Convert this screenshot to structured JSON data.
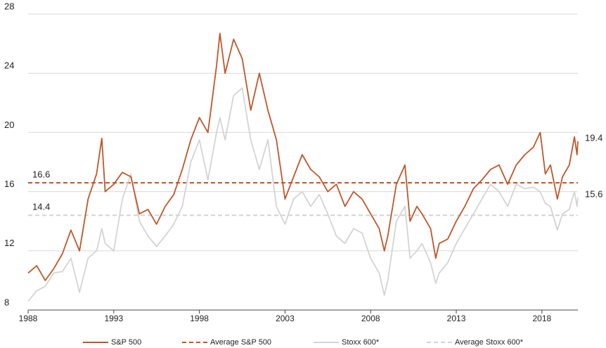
{
  "chart_data": {
    "type": "line",
    "x": [
      1988.0,
      1988.5,
      1989.0,
      1989.5,
      1990.0,
      1990.5,
      1991.0,
      1991.5,
      1992.0,
      1992.3,
      1992.5,
      1993.0,
      1993.5,
      1994.0,
      1994.5,
      1995.0,
      1995.5,
      1996.0,
      1996.5,
      1997.0,
      1997.5,
      1998.0,
      1998.5,
      1999.0,
      1999.2,
      1999.5,
      2000.0,
      2000.5,
      2001.0,
      2001.5,
      2002.0,
      2002.5,
      2003.0,
      2003.5,
      2004.0,
      2004.5,
      2005.0,
      2005.5,
      2006.0,
      2006.5,
      2007.0,
      2007.5,
      2008.0,
      2008.5,
      2008.8,
      2009.0,
      2009.5,
      2010.0,
      2010.3,
      2010.7,
      2011.0,
      2011.5,
      2011.8,
      2012.0,
      2012.5,
      2013.0,
      2013.5,
      2014.0,
      2014.5,
      2015.0,
      2015.5,
      2016.0,
      2016.5,
      2017.0,
      2017.5,
      2017.9,
      2018.2,
      2018.5,
      2018.9,
      2019.2,
      2019.6,
      2019.9,
      2020.05,
      2020.1
    ],
    "series": [
      {
        "name": "S&P 500",
        "color": "#c0562a",
        "values": [
          10.5,
          11.0,
          10.0,
          10.8,
          11.8,
          13.4,
          12.0,
          15.5,
          17.2,
          19.6,
          16.0,
          16.5,
          17.3,
          17.0,
          14.5,
          14.8,
          13.8,
          15.0,
          15.8,
          17.5,
          19.5,
          21.0,
          20.0,
          24.5,
          26.7,
          24.0,
          26.3,
          25.0,
          21.5,
          24.0,
          21.5,
          19.5,
          15.5,
          17.0,
          18.5,
          17.5,
          17.0,
          16.0,
          16.5,
          15.0,
          16.0,
          15.5,
          14.5,
          13.5,
          12.0,
          13.0,
          16.5,
          17.8,
          14.0,
          15.0,
          14.5,
          13.5,
          11.5,
          12.5,
          12.8,
          14.0,
          15.0,
          16.2,
          16.8,
          17.5,
          17.8,
          16.5,
          17.8,
          18.5,
          19.0,
          20.0,
          17.2,
          17.8,
          15.5,
          17.0,
          17.8,
          19.7,
          18.5,
          19.4
        ]
      },
      {
        "name": "Stoxx 600*",
        "color": "#d4d4d4",
        "values": [
          8.6,
          9.3,
          9.6,
          10.5,
          10.6,
          11.5,
          9.2,
          11.5,
          12.0,
          13.5,
          12.5,
          12.0,
          15.5,
          17.2,
          14.0,
          13.0,
          12.3,
          13.0,
          13.8,
          15.0,
          18.0,
          19.5,
          16.8,
          20.0,
          21.0,
          19.5,
          22.5,
          23.0,
          19.5,
          17.5,
          19.5,
          15.0,
          13.8,
          15.5,
          16.0,
          15.0,
          15.8,
          14.5,
          13.0,
          12.5,
          13.5,
          13.2,
          11.5,
          10.5,
          9.0,
          10.0,
          14.0,
          15.0,
          11.5,
          12.0,
          12.5,
          11.2,
          9.8,
          10.5,
          11.2,
          12.5,
          13.5,
          14.5,
          15.5,
          16.5,
          16.0,
          15.0,
          16.5,
          16.2,
          16.3,
          16.0,
          15.2,
          15.0,
          13.4,
          14.5,
          14.8,
          16.0,
          15.0,
          15.6
        ]
      }
    ],
    "averages": [
      {
        "name": "Average S&P 500",
        "color": "#c0562a",
        "value": 16.6
      },
      {
        "name": "Average Stoxx 600*",
        "color": "#d4d4d4",
        "value": 14.4
      }
    ],
    "xlim": [
      1988,
      2020.1
    ],
    "xticks": [
      1988,
      1993,
      1998,
      2003,
      2008,
      2013,
      2018
    ],
    "ylim": [
      8,
      28
    ],
    "yticks": [
      8,
      12,
      16,
      20,
      24,
      28
    ],
    "grid": true
  }
}
